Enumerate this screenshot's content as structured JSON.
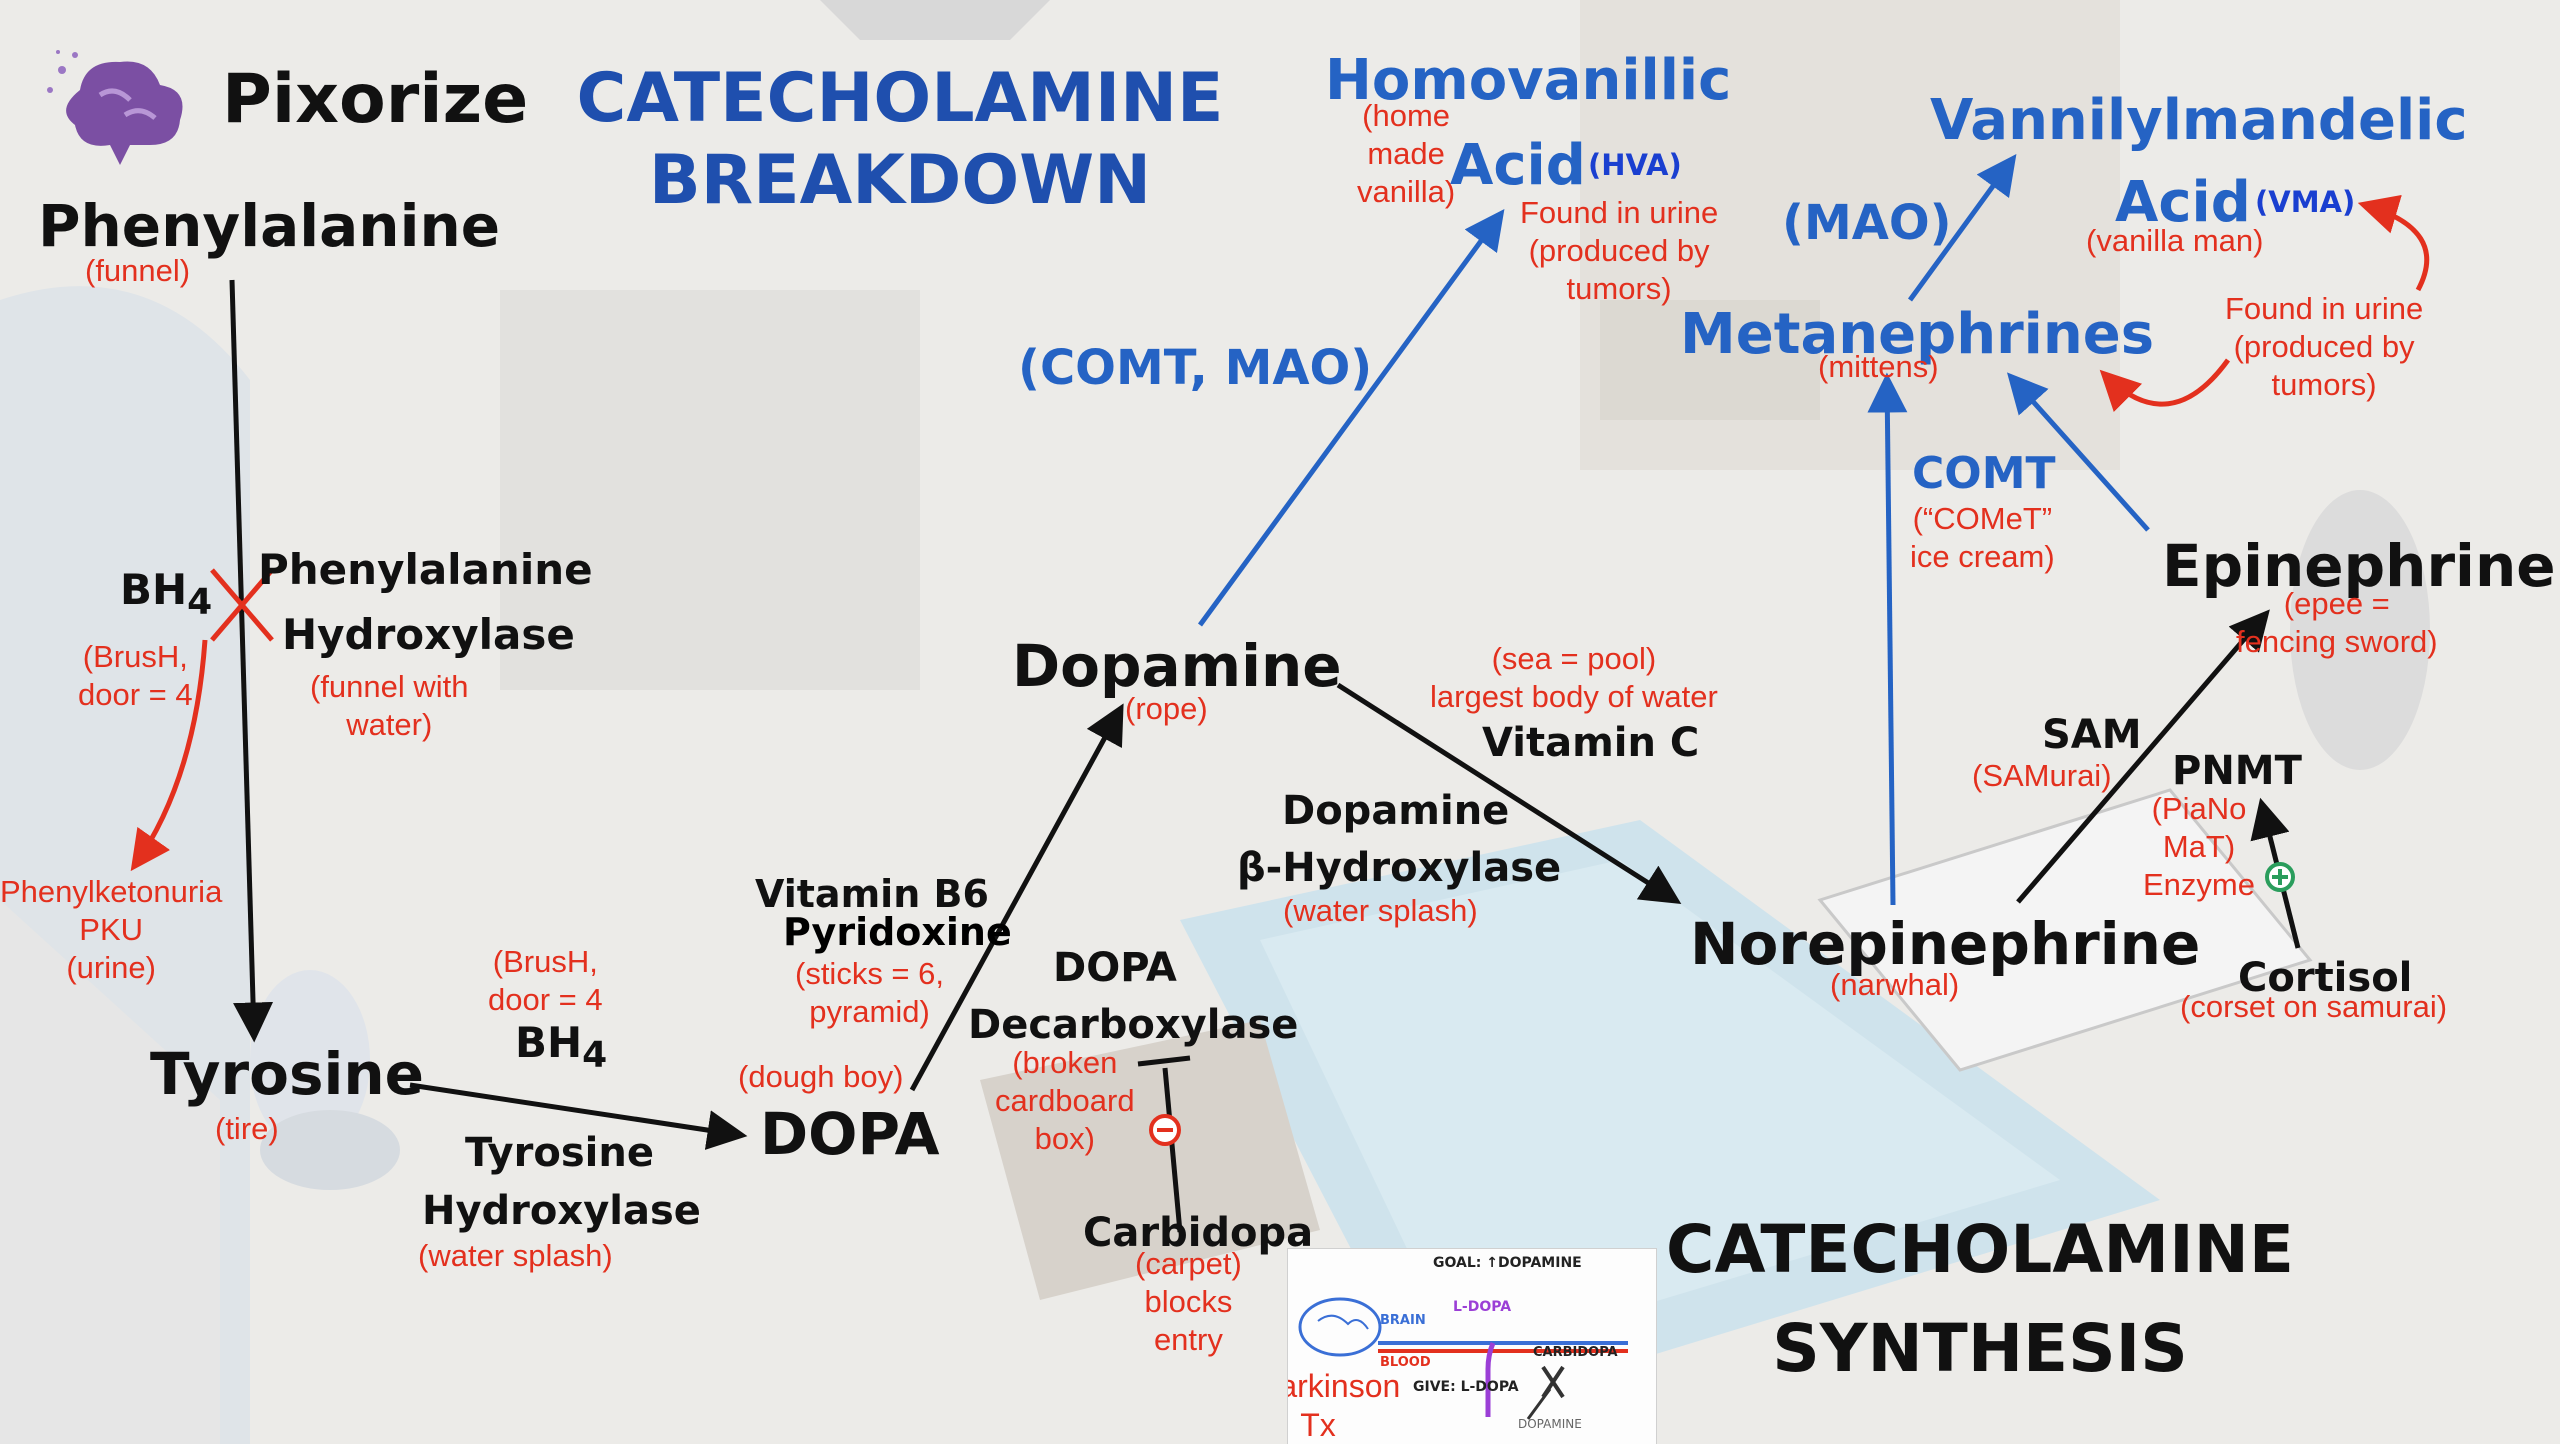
{
  "brand": {
    "name": "Pixorize",
    "color": "#7b4fa3"
  },
  "headings": {
    "breakdown_line1": "CATECHOLAMINE",
    "breakdown_line2": "BREAKDOWN",
    "synthesis_line1": "CATECHOLAMINE",
    "synthesis_line2": "SYNTHESIS"
  },
  "nodes": {
    "phenylalanine": {
      "name": "Phenylalanine",
      "mnemonic": "(funnel)"
    },
    "tyrosine": {
      "name": "Tyrosine",
      "mnemonic": "(tire)"
    },
    "dopa": {
      "name": "DOPA",
      "mnemonic": "(dough boy)"
    },
    "dopamine": {
      "name": "Dopamine",
      "mnemonic": "(rope)"
    },
    "norepinephrine": {
      "name": "Norepinephrine",
      "mnemonic": "(narwhal)"
    },
    "epinephrine": {
      "name": "Epinephrine",
      "mnemonic": "(epee =\nfencing sword)"
    },
    "hva": {
      "name_line1": "Homovanillic",
      "name_line2": "Acid",
      "abbr": "(HVA)",
      "mnemonic": "(home\nmade\nvanilla)",
      "note": "Found in urine\n(produced by\ntumors)"
    },
    "metanephrines": {
      "name": "Metanephrines",
      "mnemonic": "(mittens)"
    },
    "vma": {
      "name_line1": "Vannilylmandelic",
      "name_line2": "Acid",
      "abbr": "(VMA)",
      "mnemonic": "(vanilla man)",
      "note": "Found in urine\n(produced by\ntumors)"
    },
    "cortisol": {
      "name": "Cortisol",
      "mnemonic": "(corset on samurai)"
    },
    "carbidopa": {
      "name": "Carbidopa",
      "mnemonic": "(carpet)\nblocks\nentry"
    },
    "pku": {
      "name": "Phenylketonuria\nPKU\n(urine)"
    }
  },
  "enzymes": {
    "phe_hydroxylase": {
      "line1": "Phenylalanine",
      "line2": "Hydroxylase",
      "mnemonic": "(funnel with\nwater)",
      "cofactor": "BH",
      "cofactor_sub": "4",
      "cofactor_mnemonic": "(BrusH,\ndoor = 4"
    },
    "tyr_hydroxylase": {
      "line1": "Tyrosine",
      "line2": "Hydroxylase",
      "mnemonic": "(water splash)",
      "cofactor": "BH",
      "cofactor_sub": "4",
      "cofactor_mnemonic": "(BrusH,\ndoor = 4"
    },
    "dopa_decarboxylase": {
      "line1": "DOPA",
      "line2": "Decarboxylase",
      "mnemonic": "(broken\ncardboard\nbox)",
      "vitamin": "Vitamin B6",
      "vitamin_name": "Pyridoxine",
      "vitamin_mnemonic": "(sticks = 6,\npyramid)"
    },
    "dbh": {
      "line1": "Dopamine",
      "line2": "β-Hydroxylase",
      "mnemonic": "(water splash)",
      "vitamin": "Vitamin C",
      "vitamin_mnemonic": "(sea = pool)\nlargest body of water"
    },
    "pnmt": {
      "name": "PNMT",
      "mnemonic": "(PiaNo\nMaT)\nEnzyme",
      "cofactor": "SAM",
      "cofactor_mnemonic": "(SAMurai)"
    },
    "comt_mao": {
      "name": "(COMT, MAO)"
    },
    "comt": {
      "name": "COMT",
      "mnemonic": "(“COMeT”\nice cream)"
    },
    "mao": {
      "name": "(MAO)"
    }
  },
  "inset": {
    "caption": "Parkinson\nTx",
    "goal": "GOAL: ↑DOPAMINE",
    "brain": "BRAIN",
    "blood": "BLOOD",
    "ldopa": "L-DOPA",
    "carbidopa": "CARBIDOPA",
    "give": "GIVE: L-DOPA",
    "dopamine": "DOPAMINE"
  },
  "colors": {
    "black": "#111111",
    "blue": "#2563c4",
    "red": "#e3301e",
    "green": "#2a9d5c"
  }
}
